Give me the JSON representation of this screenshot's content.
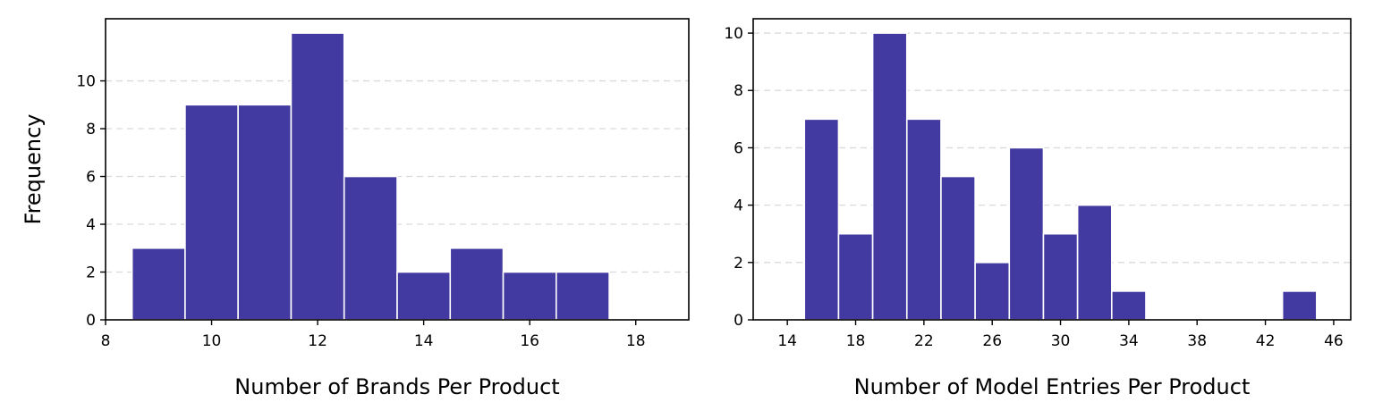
{
  "chart_data": [
    {
      "type": "bar",
      "subtype": "histogram",
      "bins": [
        {
          "start": 8.5,
          "end": 9.5,
          "count": 3
        },
        {
          "start": 9.5,
          "end": 10.5,
          "count": 9
        },
        {
          "start": 10.5,
          "end": 11.5,
          "count": 9
        },
        {
          "start": 11.5,
          "end": 12.5,
          "count": 12
        },
        {
          "start": 12.5,
          "end": 13.5,
          "count": 6
        },
        {
          "start": 13.5,
          "end": 14.5,
          "count": 2
        },
        {
          "start": 14.5,
          "end": 15.5,
          "count": 3
        },
        {
          "start": 15.5,
          "end": 16.5,
          "count": 2
        },
        {
          "start": 16.5,
          "end": 17.5,
          "count": 2
        }
      ],
      "xlabel": "Number of Brands Per Product",
      "ylabel": "Frequency",
      "xlim": [
        8,
        19
      ],
      "ylim": [
        0,
        12.6
      ],
      "xticks": [
        8,
        10,
        12,
        14,
        16,
        18
      ],
      "yticks": [
        0,
        2,
        4,
        6,
        8,
        10
      ],
      "grid": "y-dashed",
      "color": "#433aa1"
    },
    {
      "type": "bar",
      "subtype": "histogram",
      "bins": [
        {
          "start": 15,
          "end": 17,
          "count": 7
        },
        {
          "start": 17,
          "end": 19,
          "count": 3
        },
        {
          "start": 19,
          "end": 21,
          "count": 10
        },
        {
          "start": 21,
          "end": 23,
          "count": 7
        },
        {
          "start": 23,
          "end": 25,
          "count": 5
        },
        {
          "start": 25,
          "end": 27,
          "count": 2
        },
        {
          "start": 27,
          "end": 29,
          "count": 6
        },
        {
          "start": 29,
          "end": 31,
          "count": 3
        },
        {
          "start": 31,
          "end": 33,
          "count": 4
        },
        {
          "start": 33,
          "end": 35,
          "count": 1
        },
        {
          "start": 43,
          "end": 45,
          "count": 1
        }
      ],
      "xlabel": "Number of Model Entries Per Product",
      "ylabel": "",
      "xlim": [
        12,
        47
      ],
      "ylim": [
        0,
        10.5
      ],
      "xticks": [
        14,
        18,
        22,
        26,
        30,
        34,
        38,
        42,
        46
      ],
      "yticks": [
        0,
        2,
        4,
        6,
        8,
        10
      ],
      "grid": "y-dashed",
      "color": "#433aa1"
    }
  ]
}
